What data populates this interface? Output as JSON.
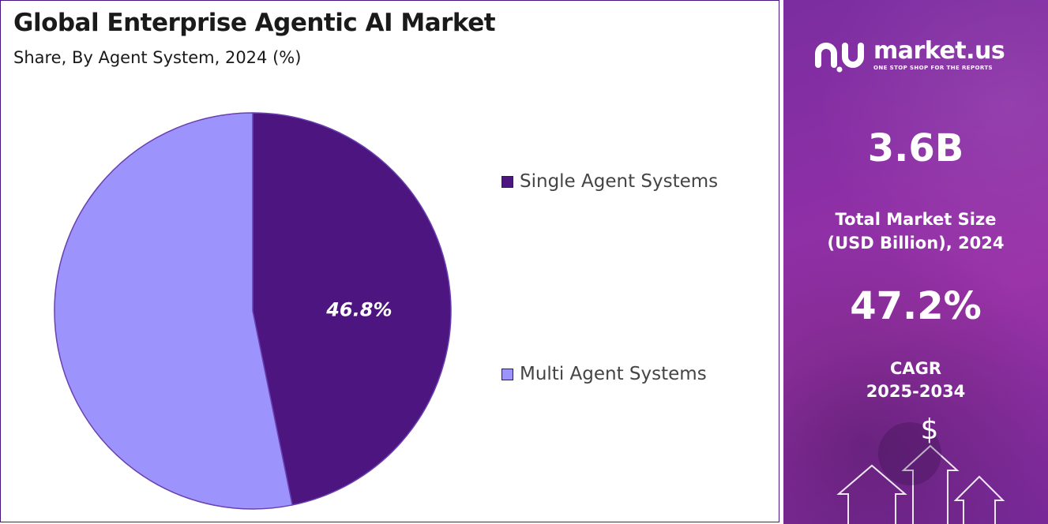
{
  "header": {
    "title": "Global Enterprise Agentic AI Market",
    "subtitle": "Share, By Agent System, 2024 (%)"
  },
  "chart_data": {
    "type": "pie",
    "title": "Global Enterprise Agentic AI Market",
    "subtitle": "Share, By Agent System, 2024 (%)",
    "slices": [
      {
        "label": "Single Agent Systems",
        "value": 46.8,
        "color": "#4c1580",
        "data_label": "46.8%"
      },
      {
        "label": "Multi Agent Systems",
        "value": 53.2,
        "color": "#9c94fc",
        "data_label": ""
      }
    ],
    "start_angle_deg": 0,
    "direction": "clockwise",
    "legend_position": "right"
  },
  "legend": {
    "items": [
      {
        "label": "Single Agent Systems",
        "color": "#4c1580"
      },
      {
        "label": "Multi Agent Systems",
        "color": "#9c94fc"
      }
    ]
  },
  "sidebar": {
    "brand": "market.us",
    "tagline": "ONE STOP SHOP FOR THE REPORTS",
    "market_size_value": "3.6B",
    "market_size_label_line1": "Total Market Size",
    "market_size_label_line2": "(USD Billion), 2024",
    "cagr_value": "47.2%",
    "cagr_label_line1": "CAGR",
    "cagr_label_line2": "2025-2034",
    "currency_symbol": "$"
  },
  "colors": {
    "panel_border": "#4a1480",
    "sidebar_background": "#8d2fa6",
    "text_dark": "#1a1a1a"
  },
  "icons": [
    "market-us-logo-icon",
    "dollar-sign-icon",
    "up-arrow-icon"
  ]
}
